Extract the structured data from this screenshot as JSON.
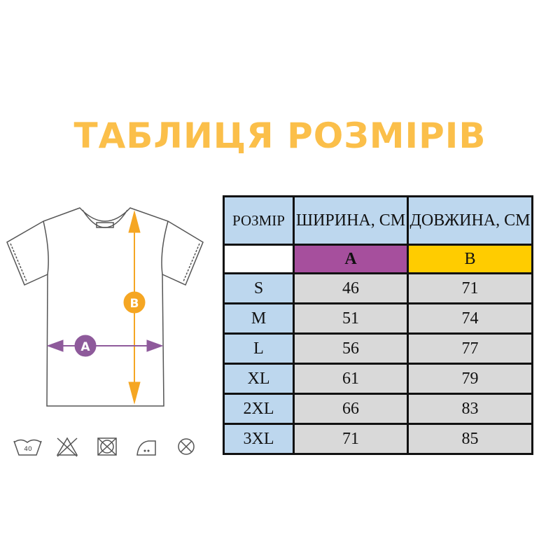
{
  "title": "ТАБЛИЦЯ РОЗМІРІВ",
  "colors": {
    "title": "#fbbf4a",
    "header_bg": "#bdd7ee",
    "width_marker": "#a64f9d",
    "length_marker": "#ffcc00",
    "cell_bg": "#d9d9d9"
  },
  "diagram": {
    "width_label": "A",
    "length_label": "B"
  },
  "care_icons": [
    "wash-40-icon",
    "no-bleach-icon",
    "no-tumble-dry-icon",
    "iron-low-icon",
    "no-dry-clean-icon"
  ],
  "care_wash_temp": "40",
  "table": {
    "headers": [
      "РОЗМІР",
      "ШИРИНА, СМ",
      "ДОВЖИНА, СМ"
    ],
    "markers": [
      "",
      "A",
      "B"
    ],
    "rows": [
      [
        "S",
        "46",
        "71"
      ],
      [
        "M",
        "51",
        "74"
      ],
      [
        "L",
        "56",
        "77"
      ],
      [
        "XL",
        "61",
        "79"
      ],
      [
        "2XL",
        "66",
        "83"
      ],
      [
        "3XL",
        "71",
        "85"
      ]
    ]
  }
}
